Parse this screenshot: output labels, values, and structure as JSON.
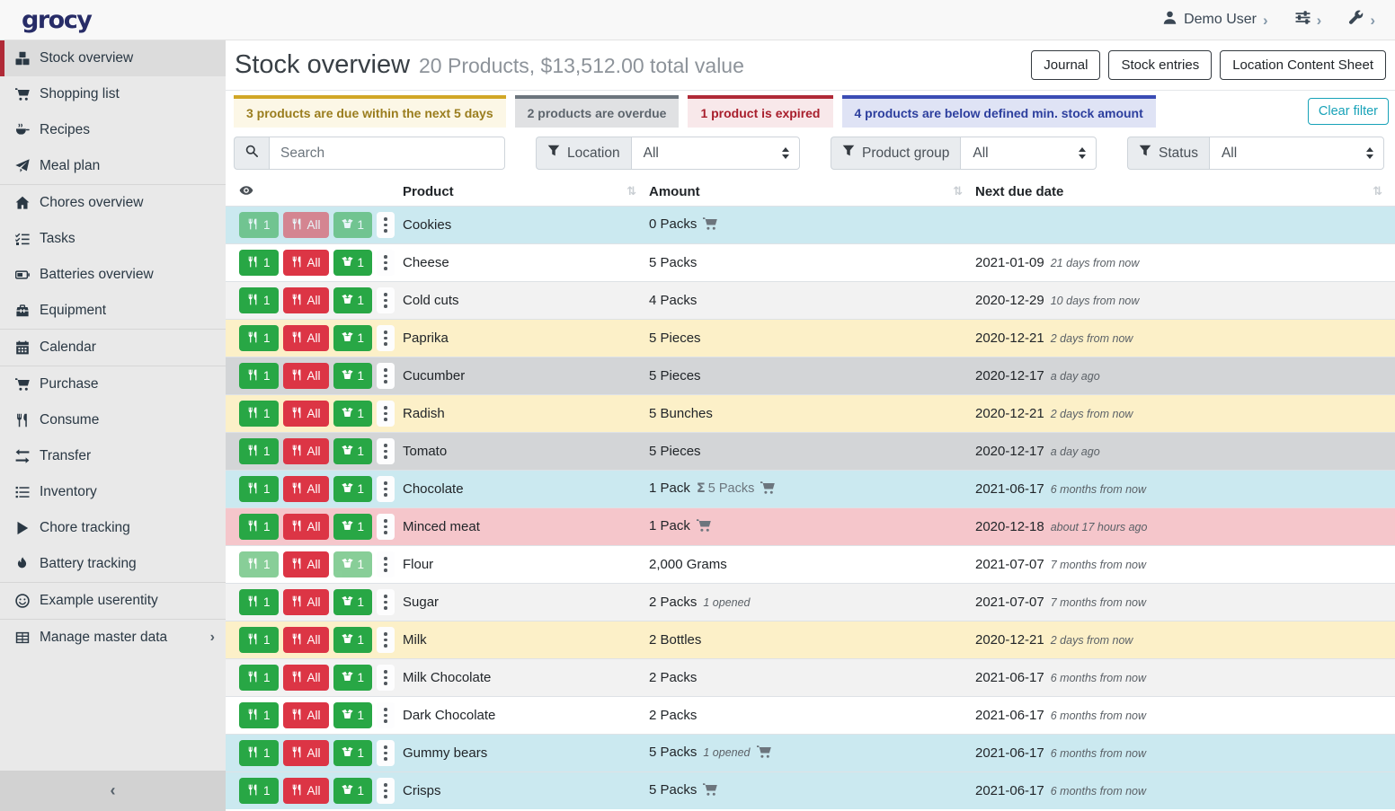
{
  "navbar": {
    "logo": "grocy",
    "user": "Demo User"
  },
  "sidebar": {
    "items": [
      {
        "label": "Stock overview",
        "icon": "boxes-icon",
        "active": true
      },
      {
        "label": "Shopping list",
        "icon": "shopping-cart-icon"
      },
      {
        "label": "Recipes",
        "icon": "cooking-pan-icon"
      },
      {
        "label": "Meal plan",
        "icon": "paper-plane-icon"
      },
      {
        "divider": true
      },
      {
        "label": "Chores overview",
        "icon": "home-icon"
      },
      {
        "label": "Tasks",
        "icon": "tasks-icon"
      },
      {
        "label": "Batteries overview",
        "icon": "battery-icon"
      },
      {
        "label": "Equipment",
        "icon": "toolbox-icon"
      },
      {
        "divider": true
      },
      {
        "label": "Calendar",
        "icon": "calendar-icon"
      },
      {
        "divider": true
      },
      {
        "label": "Purchase",
        "icon": "shopping-cart-icon"
      },
      {
        "label": "Consume",
        "icon": "utensils-icon"
      },
      {
        "label": "Transfer",
        "icon": "exchange-icon"
      },
      {
        "label": "Inventory",
        "icon": "list-icon"
      },
      {
        "label": "Chore tracking",
        "icon": "play-icon"
      },
      {
        "label": "Battery tracking",
        "icon": "fire-icon"
      },
      {
        "divider": true
      },
      {
        "label": "Example userentity",
        "icon": "smile-icon"
      },
      {
        "divider": true
      },
      {
        "label": "Manage master data",
        "icon": "table-icon",
        "chevron": true
      }
    ],
    "collapse_glyph": "‹"
  },
  "header": {
    "title": "Stock overview",
    "subtitle": "20 Products, $13,512.00 total value",
    "buttons": [
      "Journal",
      "Stock entries",
      "Location Content Sheet"
    ]
  },
  "banners": [
    {
      "text": "3 products are due within the next 5 days",
      "type": "duesoon"
    },
    {
      "text": "2 products are overdue",
      "type": "overdue"
    },
    {
      "text": "1 product is expired",
      "type": "expired"
    },
    {
      "text": "4 products are below defined min. stock amount",
      "type": "belowmin"
    }
  ],
  "clear_filter_label": "Clear filter",
  "filters": {
    "search_placeholder": "Search",
    "groups": [
      {
        "label": "Location",
        "value": "All"
      },
      {
        "label": "Product group",
        "value": "All"
      },
      {
        "label": "Status",
        "value": "All"
      }
    ]
  },
  "table": {
    "columns": [
      "Product",
      "Amount",
      "Next due date"
    ],
    "row_buttons": {
      "consume_one": "1",
      "consume_all": "All",
      "open_one": "1"
    },
    "rows": [
      {
        "name": "Cookies",
        "status": "belowmin",
        "amount": "0 Packs",
        "cart": true,
        "date": "",
        "relative": "",
        "disabled": "all"
      },
      {
        "name": "Cheese",
        "status": "",
        "amount": "5 Packs",
        "cart": false,
        "date": "2021-01-09",
        "relative": "21 days from now",
        "disabled": ""
      },
      {
        "name": "Cold cuts",
        "status": "stripe",
        "amount": "4 Packs",
        "cart": false,
        "date": "2020-12-29",
        "relative": "10 days from now",
        "disabled": ""
      },
      {
        "name": "Paprika",
        "status": "duesoon",
        "amount": "5 Pieces",
        "cart": false,
        "date": "2020-12-21",
        "relative": "2 days from now",
        "disabled": ""
      },
      {
        "name": "Cucumber",
        "status": "overdue",
        "amount": "5 Pieces",
        "cart": false,
        "date": "2020-12-17",
        "relative": "a day ago",
        "disabled": ""
      },
      {
        "name": "Radish",
        "status": "duesoon",
        "amount": "5 Bunches",
        "cart": false,
        "date": "2020-12-21",
        "relative": "2 days from now",
        "disabled": ""
      },
      {
        "name": "Tomato",
        "status": "overdue",
        "amount": "5 Pieces",
        "cart": false,
        "date": "2020-12-17",
        "relative": "a day ago",
        "disabled": ""
      },
      {
        "name": "Chocolate",
        "status": "belowmin",
        "amount": "1 Pack",
        "aggregate": "5 Packs",
        "cart": true,
        "date": "2021-06-17",
        "relative": "6 months from now",
        "disabled": ""
      },
      {
        "name": "Minced meat",
        "status": "expired",
        "amount": "1 Pack",
        "cart": true,
        "date": "2020-12-18",
        "relative": "about 17 hours ago",
        "disabled": ""
      },
      {
        "name": "Flour",
        "status": "",
        "amount": "2,000 Grams",
        "cart": false,
        "date": "2021-07-07",
        "relative": "7 months from now",
        "disabled": "greens"
      },
      {
        "name": "Sugar",
        "status": "stripe",
        "amount": "2 Packs",
        "opened": "1 opened",
        "cart": false,
        "date": "2021-07-07",
        "relative": "7 months from now",
        "disabled": ""
      },
      {
        "name": "Milk",
        "status": "duesoon",
        "amount": "2 Bottles",
        "cart": false,
        "date": "2020-12-21",
        "relative": "2 days from now",
        "disabled": ""
      },
      {
        "name": "Milk Chocolate",
        "status": "stripe",
        "amount": "2 Packs",
        "cart": false,
        "date": "2021-06-17",
        "relative": "6 months from now",
        "disabled": ""
      },
      {
        "name": "Dark Chocolate",
        "status": "",
        "amount": "2 Packs",
        "cart": false,
        "date": "2021-06-17",
        "relative": "6 months from now",
        "disabled": ""
      },
      {
        "name": "Gummy bears",
        "status": "belowmin",
        "amount": "5 Packs",
        "opened": "1 opened",
        "cart": true,
        "date": "2021-06-17",
        "relative": "6 months from now",
        "disabled": ""
      },
      {
        "name": "Crisps",
        "status": "belowmin",
        "amount": "5 Packs",
        "cart": true,
        "date": "2021-06-17",
        "relative": "6 months from now",
        "disabled": ""
      }
    ],
    "aggregate_symbol": "Σ"
  },
  "colors": {
    "success": "#28a745",
    "danger": "#dc3545",
    "info": "#17a2b8",
    "brand": "#272c67",
    "row_below_min": "#cbe9f0",
    "row_due_soon": "#fcf0c8",
    "row_overdue": "#d3d5d7",
    "row_expired": "#f5c6cb",
    "banner_due_border": "#d1a727",
    "banner_belowmin_border": "#3a4cb4",
    "active_item_border": "#b02a37"
  }
}
